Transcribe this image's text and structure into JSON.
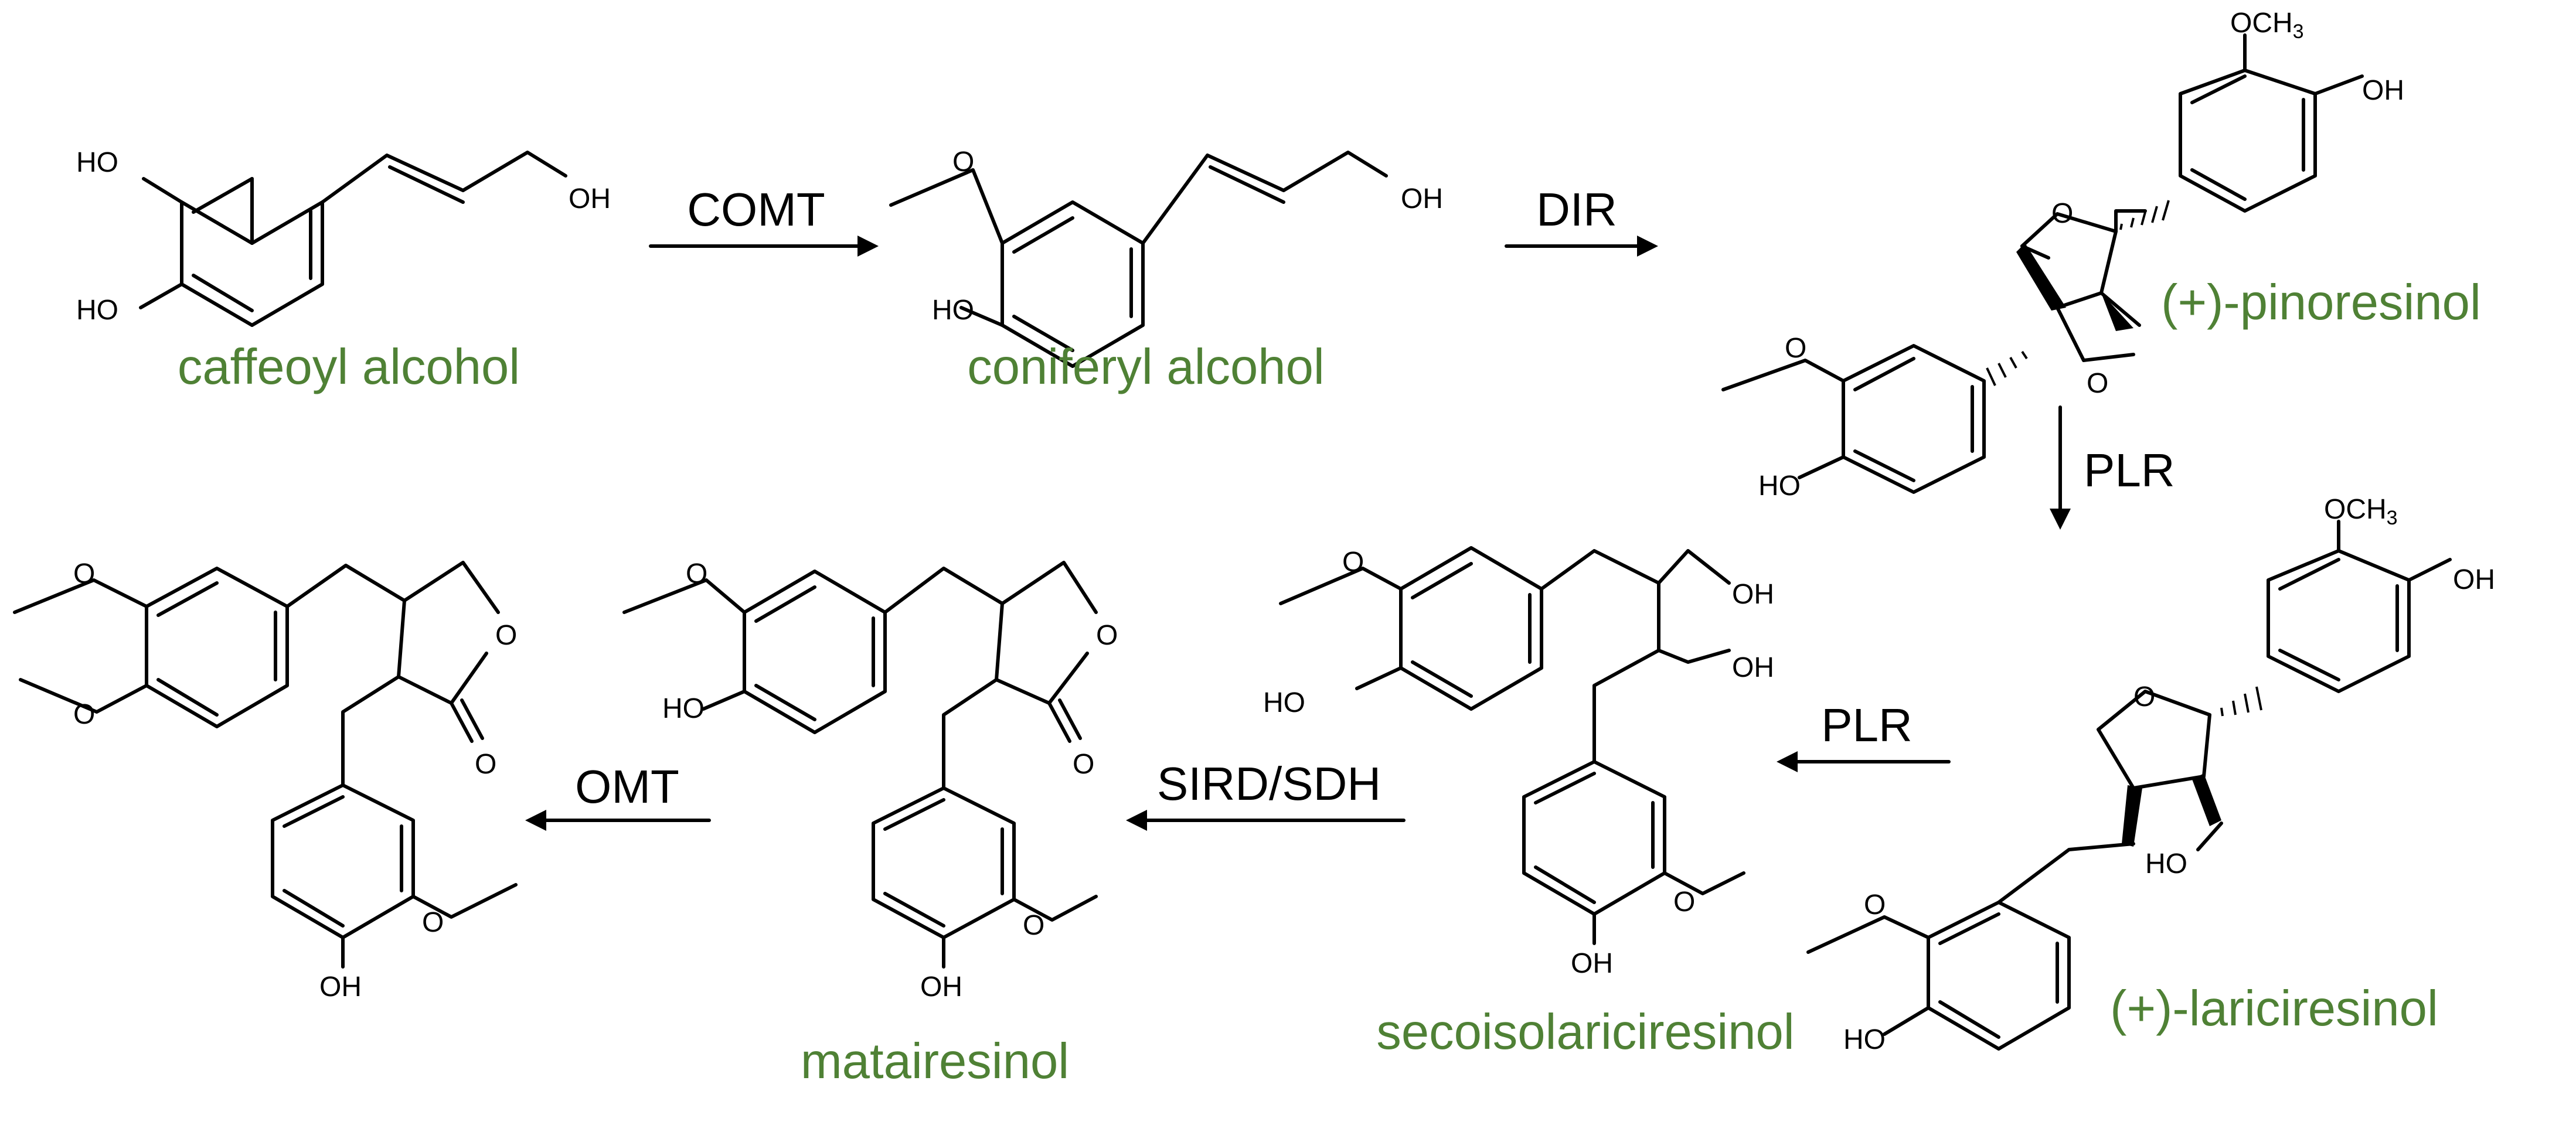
{
  "colors": {
    "compound_name": "#4f8135",
    "structure": "#000000"
  },
  "atoms": {
    "ho": "HO",
    "oh": "OH",
    "o": "O",
    "och3_main": "OCH",
    "och3_sub": "3"
  },
  "compounds": {
    "caffeoyl": "caffeoyl alcohol",
    "coniferyl": "coniferyl alcohol",
    "pinoresinol": "(+)-pinoresinol",
    "lariciresinol": "(+)-lariciresinol",
    "secoisolariciresinol": "secoisolariciresinol",
    "matairesinol": "matairesinol"
  },
  "enzymes": {
    "comt": "COMT",
    "dir": "DIR",
    "plr1": "PLR",
    "plr2": "PLR",
    "sird_sdh": "SIRD/SDH",
    "omt": "OMT"
  }
}
